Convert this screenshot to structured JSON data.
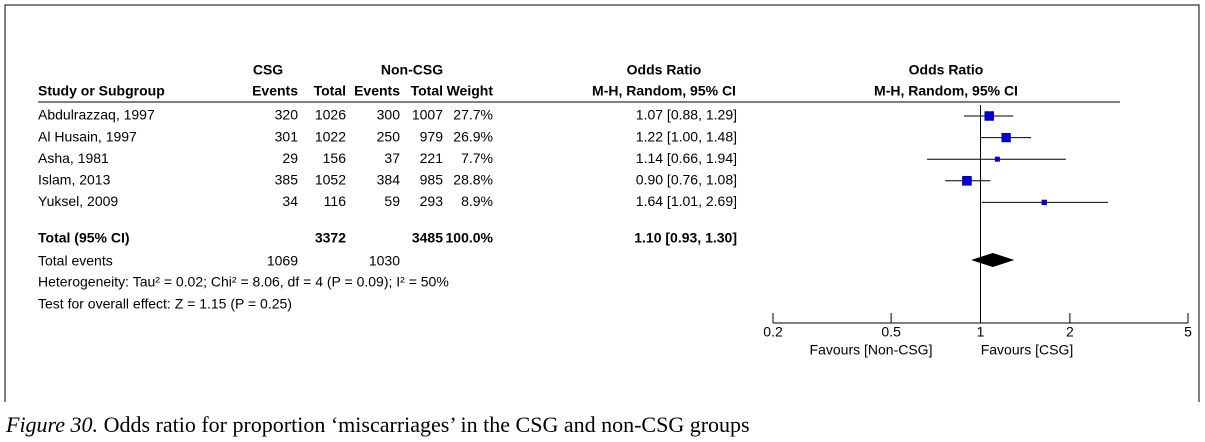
{
  "header": {
    "csg": "CSG",
    "non_csg": "Non-CSG",
    "odds_ratio_left": "Odds Ratio",
    "odds_ratio_right": "Odds Ratio",
    "study": "Study or Subgroup",
    "events_csg": "Events",
    "total_csg": "Total",
    "events_non": "Events",
    "total_non": "Total",
    "weight": "Weight",
    "method_left": "M-H, Random, 95% CI",
    "method_right": "M-H, Random, 95% CI"
  },
  "studies": [
    {
      "name": "Abdulrazzaq, 1997",
      "csg_events": "320",
      "csg_total": "1026",
      "non_events": "300",
      "non_total": "1007",
      "weight": "27.7%",
      "weight_value": 27.7,
      "or_label": "1.07 [0.88, 1.29]",
      "or": 1.07,
      "ci": [
        0.88,
        1.29
      ]
    },
    {
      "name": "Al Husain, 1997",
      "csg_events": "301",
      "csg_total": "1022",
      "non_events": "250",
      "non_total": "979",
      "weight": "26.9%",
      "weight_value": 26.9,
      "or_label": "1.22 [1.00, 1.48]",
      "or": 1.22,
      "ci": [
        1.0,
        1.48
      ]
    },
    {
      "name": "Asha, 1981",
      "csg_events": "29",
      "csg_total": "156",
      "non_events": "37",
      "non_total": "221",
      "weight": "7.7%",
      "weight_value": 7.7,
      "or_label": "1.14 [0.66, 1.94]",
      "or": 1.14,
      "ci": [
        0.66,
        1.94
      ]
    },
    {
      "name": "Islam, 2013",
      "csg_events": "385",
      "csg_total": "1052",
      "non_events": "384",
      "non_total": "985",
      "weight": "28.8%",
      "weight_value": 28.8,
      "or_label": "0.90 [0.76, 1.08]",
      "or": 0.9,
      "ci": [
        0.76,
        1.08
      ]
    },
    {
      "name": "Yuksel, 2009",
      "csg_events": "34",
      "csg_total": "116",
      "non_events": "59",
      "non_total": "293",
      "weight": "8.9%",
      "weight_value": 8.9,
      "or_label": "1.64 [1.01, 2.69]",
      "or": 1.64,
      "ci": [
        1.01,
        2.69
      ]
    }
  ],
  "total": {
    "label": "Total (95% CI)",
    "csg_total": "3372",
    "non_total": "3485",
    "weight": "100.0%",
    "or_label": "1.10 [0.93, 1.30]",
    "or": 1.1,
    "ci": [
      0.93,
      1.3
    ]
  },
  "total_events": {
    "label": "Total events",
    "csg": "1069",
    "non": "1030"
  },
  "heterogeneity": "Heterogeneity: Tau² = 0.02; Chi² = 8.06, df = 4 (P = 0.09); I² = 50%",
  "overall_effect": "Test for overall effect: Z = 1.15 (P = 0.25)",
  "axis": {
    "scale": "log",
    "xlim": [
      0.2,
      5
    ],
    "xticks": [
      0.2,
      0.5,
      1,
      2,
      5
    ],
    "left_label": "Favours [Non-CSG]",
    "right_label": "Favours [CSG]",
    "marker_color": "#0000cc"
  },
  "caption": {
    "label": "Figure 30.",
    "text": "Odds ratio for proportion ‘miscarriages’ in the CSG and non-CSG groups"
  }
}
